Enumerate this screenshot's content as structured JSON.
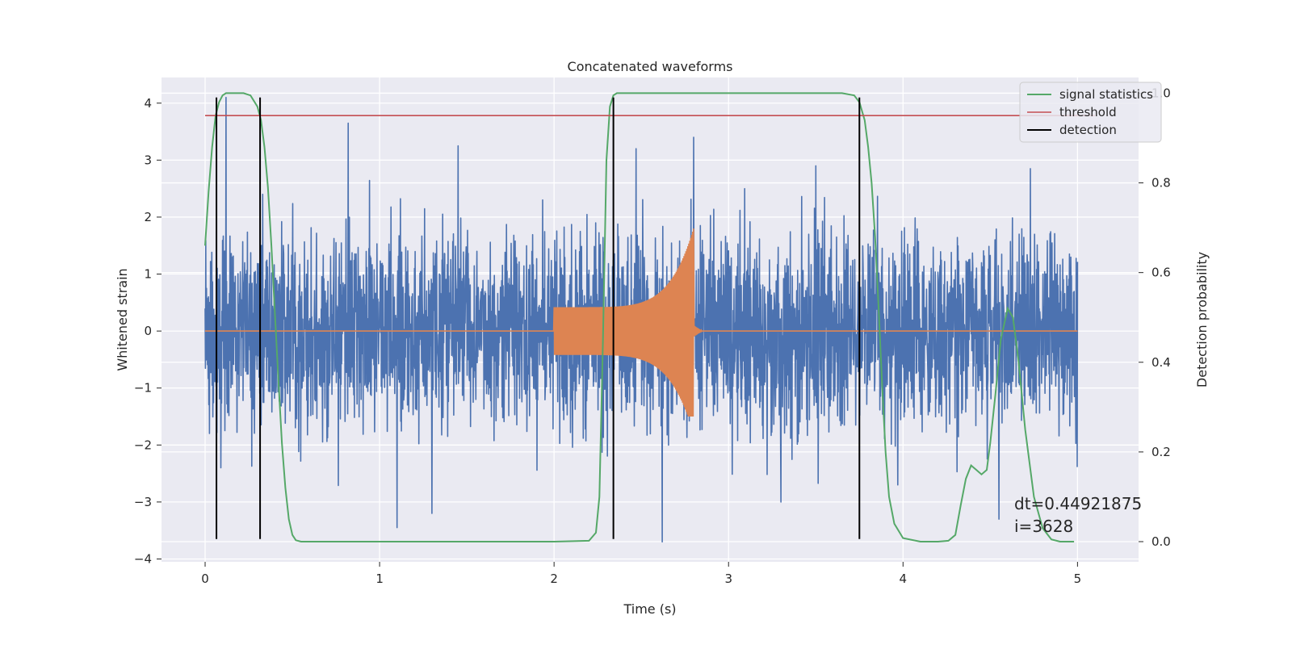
{
  "chart_data": {
    "type": "line",
    "title": "Concatenated waveforms",
    "xlabel": "Time (s)",
    "ylabel": "Whitened strain",
    "y2label": "Detection probability",
    "xlim": [
      -0.25,
      5.35
    ],
    "ylim": [
      -4.05,
      4.45
    ],
    "y2lim": [
      -0.045,
      1.035
    ],
    "x_ticks": [
      0,
      1,
      2,
      3,
      4,
      5
    ],
    "y_ticks": [
      -4,
      -3,
      -2,
      -1,
      0,
      1,
      2,
      3,
      4
    ],
    "y2_ticks": [
      0.0,
      0.2,
      0.4,
      0.6,
      0.8,
      1.0
    ],
    "x_tick_labels": [
      "0",
      "1",
      "2",
      "3",
      "4",
      "5"
    ],
    "y_tick_labels": [
      "−4",
      "−3",
      "−2",
      "−1",
      "0",
      "1",
      "2",
      "3",
      "4"
    ],
    "y2_tick_labels": [
      "0.0",
      "0.2",
      "0.4",
      "0.6",
      "0.8",
      "1.0"
    ],
    "grid": true,
    "legend_position": "top-right",
    "annotation": [
      "dt=0.44921875",
      " i=3628"
    ],
    "colors": {
      "background": "#eaeaf2",
      "grid": "#ffffff",
      "strain": "#4c72b0",
      "waveform": "#dd8452",
      "signal_statistics": "#55a868",
      "threshold": "#c44e52",
      "detection": "#000000"
    },
    "series": [
      {
        "role": "strain",
        "axis": "left",
        "description_values": "noise, roughly ±1.8 typical with peaks to ±3.7",
        "x_range": [
          0,
          5
        ],
        "typical_amplitude": 1.1,
        "peaks": [
          [
            0.12,
            4.1
          ],
          [
            0.82,
            3.65
          ],
          [
            0.33,
            2.4
          ],
          [
            1.45,
            3.25
          ],
          [
            2.47,
            3.2
          ],
          [
            2.8,
            3.4
          ],
          [
            3.5,
            2.9
          ],
          [
            4.73,
            2.85
          ],
          [
            2.62,
            -3.7
          ],
          [
            0.09,
            -2.4
          ],
          [
            1.3,
            -3.2
          ],
          [
            3.3,
            -3.0
          ],
          [
            4.55,
            -3.3
          ],
          [
            1.1,
            -3.45
          ],
          [
            3.97,
            -2.7
          ]
        ]
      },
      {
        "role": "waveform",
        "axis": "left",
        "chirp_start": 2.0,
        "chirp_end": 2.8,
        "start_amplitude": 0.42,
        "peak_amplitude": 1.8,
        "peak_min": -1.5
      },
      {
        "name": "signal statistics",
        "axis": "right",
        "x": [
          0.0,
          0.02,
          0.04,
          0.06,
          0.08,
          0.1,
          0.12,
          0.14,
          0.18,
          0.22,
          0.26,
          0.3,
          0.32,
          0.34,
          0.36,
          0.38,
          0.4,
          0.42,
          0.44,
          0.46,
          0.48,
          0.5,
          0.52,
          0.55,
          0.6,
          0.8,
          1.0,
          1.2,
          1.4,
          1.6,
          1.8,
          2.0,
          2.2,
          2.24,
          2.26,
          2.28,
          2.3,
          2.32,
          2.34,
          2.36,
          2.4,
          2.5,
          3.0,
          3.5,
          3.65,
          3.72,
          3.75,
          3.78,
          3.8,
          3.82,
          3.84,
          3.86,
          3.88,
          3.9,
          3.92,
          3.95,
          4.0,
          4.1,
          4.2,
          4.26,
          4.3,
          4.33,
          4.36,
          4.39,
          4.42,
          4.45,
          4.48,
          4.5,
          4.53,
          4.56,
          4.6,
          4.63,
          4.66,
          4.7,
          4.75,
          4.8,
          4.85,
          4.9,
          4.98
        ],
        "values": [
          0.66,
          0.78,
          0.88,
          0.95,
          0.98,
          0.995,
          1.0,
          1.0,
          1.0,
          1.0,
          0.995,
          0.97,
          0.94,
          0.88,
          0.79,
          0.66,
          0.51,
          0.36,
          0.22,
          0.12,
          0.05,
          0.015,
          0.003,
          0.0,
          0.0,
          0.0,
          0.0,
          0.0,
          0.0,
          0.0,
          0.0,
          0.0,
          0.002,
          0.02,
          0.1,
          0.45,
          0.85,
          0.97,
          0.995,
          1.0,
          1.0,
          1.0,
          1.0,
          1.0,
          1.0,
          0.995,
          0.98,
          0.94,
          0.88,
          0.8,
          0.68,
          0.52,
          0.35,
          0.2,
          0.1,
          0.04,
          0.008,
          0.0,
          0.0,
          0.002,
          0.015,
          0.08,
          0.14,
          0.17,
          0.16,
          0.15,
          0.16,
          0.22,
          0.33,
          0.45,
          0.52,
          0.5,
          0.41,
          0.25,
          0.1,
          0.03,
          0.005,
          0.0,
          0.0
        ]
      },
      {
        "name": "threshold",
        "axis": "right",
        "x": [
          0,
          5.1
        ],
        "values": [
          0.95,
          0.95
        ]
      },
      {
        "name": "detection",
        "axis": "right",
        "type": "vlines",
        "x": [
          0.065,
          0.315,
          2.34,
          3.75
        ],
        "y_range_strain": [
          -3.65,
          4.1
        ]
      }
    ]
  }
}
